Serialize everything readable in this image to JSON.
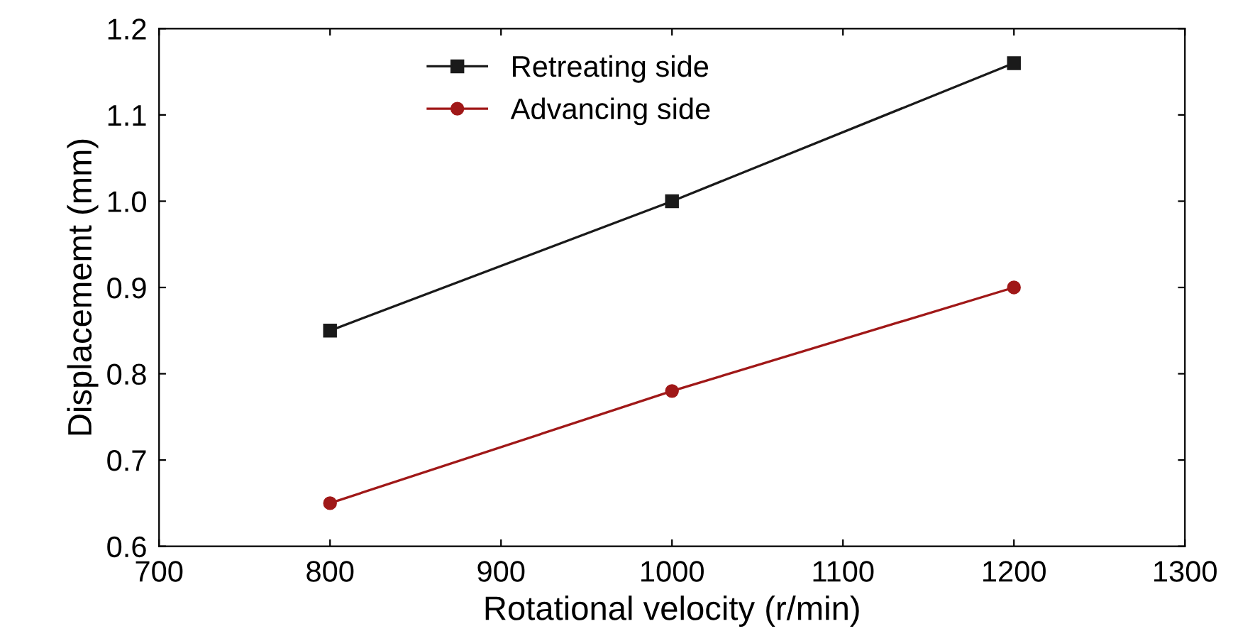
{
  "chart_data": {
    "type": "line",
    "xlabel": "Rotational velocity (r/min)",
    "ylabel": "Displacememt (mm)",
    "x": [
      800,
      1000,
      1200
    ],
    "series": [
      {
        "name": "Retreating side",
        "color": "#1a1a1a",
        "values": [
          0.85,
          1.0,
          1.16
        ],
        "marker": "square"
      },
      {
        "name": "Advancing side",
        "color": "#a01818",
        "values": [
          0.65,
          0.78,
          0.9
        ],
        "marker": "circle"
      }
    ],
    "xlim": [
      700,
      1300
    ],
    "xticks": [
      700,
      800,
      900,
      1000,
      1100,
      1200,
      1300
    ],
    "ylim": [
      0.6,
      1.2
    ],
    "yticks": [
      0.6,
      0.7,
      0.8,
      0.9,
      {
        "value": 1.0,
        "label": "1.0"
      },
      1.1,
      1.2
    ],
    "grid": false,
    "legend": "top",
    "line_style": "solid"
  }
}
